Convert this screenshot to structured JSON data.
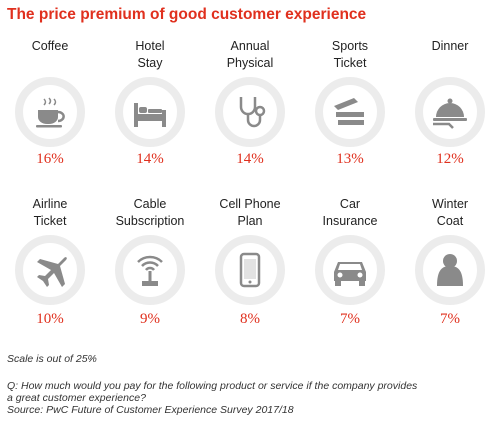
{
  "title": "The price premium of good customer experience",
  "chart_data": {
    "type": "donut-grid",
    "scale_max": 25,
    "unit": "%",
    "categories": [
      {
        "label": [
          "Coffee"
        ],
        "value": 16,
        "display": "16%",
        "icon": "coffee-cup-icon"
      },
      {
        "label": [
          "Hotel",
          "Stay"
        ],
        "value": 14,
        "display": "14%",
        "icon": "bed-icon"
      },
      {
        "label": [
          "Annual",
          "Physical"
        ],
        "value": 14,
        "display": "14%",
        "icon": "stethoscope-icon"
      },
      {
        "label": [
          "Sports",
          "Ticket"
        ],
        "value": 13,
        "display": "13%",
        "icon": "ticket-icon"
      },
      {
        "label": [
          "Dinner"
        ],
        "value": 12,
        "display": "12%",
        "icon": "food-cloche-icon"
      },
      {
        "label": [
          "Airline",
          "Ticket"
        ],
        "value": 10,
        "display": "10%",
        "icon": "airplane-icon"
      },
      {
        "label": [
          "Cable",
          "Subscription"
        ],
        "value": 9,
        "display": "9%",
        "icon": "antenna-icon"
      },
      {
        "label": [
          "Cell Phone",
          "Plan"
        ],
        "value": 8,
        "display": "8%",
        "icon": "phone-icon"
      },
      {
        "label": [
          "Car",
          "Insurance"
        ],
        "value": 7,
        "display": "7%",
        "icon": "car-icon"
      },
      {
        "label": [
          "Winter",
          "Coat"
        ],
        "value": 7,
        "display": "7%",
        "icon": "coat-icon"
      }
    ]
  },
  "colors": {
    "accent": "#e0301e",
    "ring_track": "#ececec",
    "icon": "#8a8a8a"
  },
  "footnotes": {
    "scale": "Scale is out of 25%",
    "question_1": "Q: How much would you pay for the following product or service if the company provides",
    "question_2": "a great customer experience?",
    "source": "Source: PwC Future of Customer Experience Survey 2017/18"
  }
}
